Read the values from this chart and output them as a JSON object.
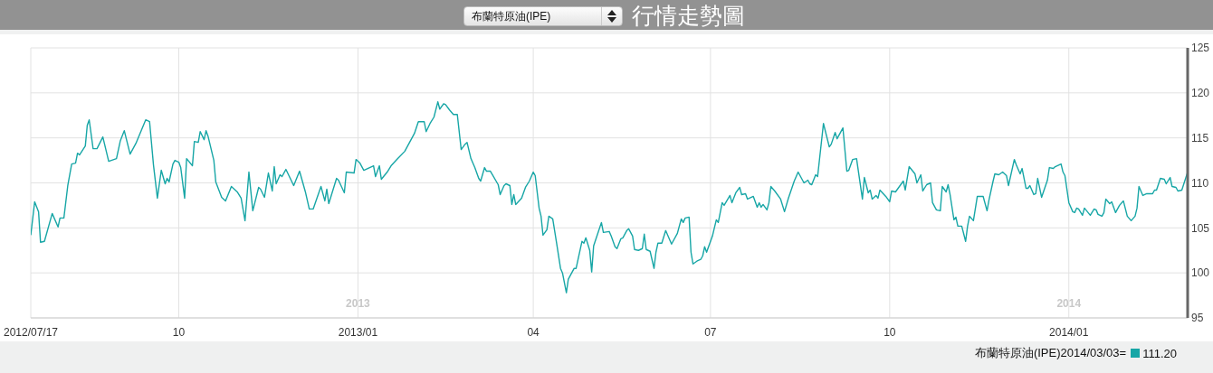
{
  "chart_data": {
    "type": "line",
    "title": "行情走勢圖",
    "subtitle": "布蘭特原油(IPE)",
    "color": "#17a6a6",
    "marker": "none",
    "grid": true,
    "xlim": [
      "2012-07-17",
      "2014-03-03"
    ],
    "xticks": [
      {
        "value": "2012-07-17",
        "label": "2012/07/17"
      },
      {
        "value": "2012-10-01",
        "label": "10"
      },
      {
        "value": "2013-01-01",
        "label": "2013/01"
      },
      {
        "value": "2013-04-01",
        "label": "04"
      },
      {
        "value": "2013-07-01",
        "label": "07"
      },
      {
        "value": "2013-10-01",
        "label": "10"
      },
      {
        "value": "2014-01-01",
        "label": "2014/01"
      }
    ],
    "ylim": [
      95,
      125
    ],
    "yticks": [
      95,
      100,
      105,
      110,
      115,
      120,
      125
    ],
    "x2lim": [
      "2012-07-17",
      "2014-03-03"
    ],
    "x2ticks": [
      {
        "value": "2013-01-01",
        "label": "2013"
      },
      {
        "value": "2014-01-01",
        "label": "2014"
      }
    ],
    "annotations": [
      "布蘭特原油(IPE)2014/03/03=",
      "111.20"
    ],
    "x": [
      "2012-07-17",
      "2012-07-19",
      "2012-07-21",
      "2012-07-22",
      "2012-07-24",
      "2012-07-28",
      "2012-07-31",
      "2012-08-01",
      "2012-08-03",
      "2012-08-05",
      "2012-08-07",
      "2012-08-09",
      "2012-08-10",
      "2012-08-11",
      "2012-08-14",
      "2012-08-15",
      "2012-08-16",
      "2012-08-18",
      "2012-08-20",
      "2012-08-23",
      "2012-08-26",
      "2012-08-30",
      "2012-09-01",
      "2012-09-03",
      "2012-09-06",
      "2012-09-09",
      "2012-09-14",
      "2012-09-16",
      "2012-09-18",
      "2012-09-20",
      "2012-09-22",
      "2012-09-24",
      "2012-09-25",
      "2012-09-26",
      "2012-09-28",
      "2012-09-29",
      "2012-10-01",
      "2012-10-02",
      "2012-10-04",
      "2012-10-05",
      "2012-10-08",
      "2012-10-09",
      "2012-10-11",
      "2012-10-12",
      "2012-10-14",
      "2012-10-15",
      "2012-10-16",
      "2012-10-19",
      "2012-10-20",
      "2012-10-23",
      "2012-10-25",
      "2012-10-28",
      "2012-10-31",
      "2012-11-02",
      "2012-11-04",
      "2012-11-06",
      "2012-11-08",
      "2012-11-11",
      "2012-11-12",
      "2012-11-14",
      "2012-11-16",
      "2012-11-18",
      "2012-11-19",
      "2012-11-20",
      "2012-11-22",
      "2012-11-23",
      "2012-11-25",
      "2012-11-29",
      "2012-12-02",
      "2012-12-05",
      "2012-12-07",
      "2012-12-09",
      "2012-12-13",
      "2012-12-15",
      "2012-12-16",
      "2012-12-17",
      "2012-12-21",
      "2012-12-22",
      "2012-12-25",
      "2012-12-26",
      "2012-12-30",
      "2012-12-31",
      "2013-01-02",
      "2013-01-04",
      "2013-01-09",
      "2013-01-10",
      "2013-01-12",
      "2013-01-13",
      "2013-01-16",
      "2013-01-18",
      "2013-01-21",
      "2013-01-25",
      "2013-01-30",
      "2013-02-01",
      "2013-02-04",
      "2013-02-05",
      "2013-02-07",
      "2013-02-09",
      "2013-02-11",
      "2013-02-12",
      "2013-02-14",
      "2013-02-15",
      "2013-02-17",
      "2013-02-19",
      "2013-02-21",
      "2013-02-23",
      "2013-02-25",
      "2013-02-26",
      "2013-02-28",
      "2013-03-02",
      "2013-03-04",
      "2013-03-05",
      "2013-03-07",
      "2013-03-08",
      "2013-03-10",
      "2013-03-14",
      "2013-03-15",
      "2013-03-17",
      "2013-03-18",
      "2013-03-20",
      "2013-03-21",
      "2013-03-22",
      "2013-03-23",
      "2013-03-26",
      "2013-03-28",
      "2013-03-30",
      "2013-04-01",
      "2013-04-02",
      "2013-04-04",
      "2013-04-05",
      "2013-04-06",
      "2013-04-08",
      "2013-04-09",
      "2013-04-11",
      "2013-04-13",
      "2013-04-15",
      "2013-04-16",
      "2013-04-18",
      "2013-04-19",
      "2013-04-22",
      "2013-04-23",
      "2013-04-26",
      "2013-04-27",
      "2013-04-28",
      "2013-04-30",
      "2013-05-01",
      "2013-05-02",
      "2013-05-06",
      "2013-05-07",
      "2013-05-10",
      "2013-05-11",
      "2013-05-13",
      "2013-05-14",
      "2013-05-16",
      "2013-05-17",
      "2013-05-19",
      "2013-05-20",
      "2013-05-22",
      "2013-05-23",
      "2013-05-25",
      "2013-05-27",
      "2013-05-28",
      "2013-05-29",
      "2013-05-31",
      "2013-06-02",
      "2013-06-03",
      "2013-06-04",
      "2013-06-06",
      "2013-06-08",
      "2013-06-11",
      "2013-06-14",
      "2013-06-16",
      "2013-06-17",
      "2013-06-18",
      "2013-06-20",
      "2013-06-21",
      "2013-06-22",
      "2013-06-24",
      "2013-06-26",
      "2013-06-27",
      "2013-06-28",
      "2013-06-29",
      "2013-07-02",
      "2013-07-04",
      "2013-07-05",
      "2013-07-07",
      "2013-07-08",
      "2013-07-11",
      "2013-07-12",
      "2013-07-14",
      "2013-07-16",
      "2013-07-17",
      "2013-07-19",
      "2013-07-20",
      "2013-07-23",
      "2013-07-25",
      "2013-07-26",
      "2013-07-27",
      "2013-07-28",
      "2013-07-30",
      "2013-07-31",
      "2013-08-01",
      "2013-08-03",
      "2013-08-06",
      "2013-08-08",
      "2013-08-10",
      "2013-08-13",
      "2013-08-15",
      "2013-08-17",
      "2013-08-18",
      "2013-08-20",
      "2013-08-21",
      "2013-08-22",
      "2013-08-24",
      "2013-08-25",
      "2013-08-28",
      "2013-08-31",
      "2013-09-01",
      "2013-09-03",
      "2013-09-04",
      "2013-09-07",
      "2013-09-09",
      "2013-09-10",
      "2013-09-12",
      "2013-09-14",
      "2013-09-17",
      "2013-09-18",
      "2013-09-20",
      "2013-09-21",
      "2013-09-22",
      "2013-09-24",
      "2013-09-25",
      "2013-09-26",
      "2013-09-29",
      "2013-10-01",
      "2013-10-02",
      "2013-10-04",
      "2013-10-06",
      "2013-10-08",
      "2013-10-09",
      "2013-10-11",
      "2013-10-14",
      "2013-10-15",
      "2013-10-17",
      "2013-10-18",
      "2013-10-20",
      "2013-10-22",
      "2013-10-23",
      "2013-10-25",
      "2013-10-27",
      "2013-10-28",
      "2013-10-30",
      "2013-10-31",
      "2013-11-01",
      "2013-11-03",
      "2013-11-04",
      "2013-11-05",
      "2013-11-07",
      "2013-11-09",
      "2013-11-10",
      "2013-11-11",
      "2013-11-13",
      "2013-11-15",
      "2013-11-18",
      "2013-11-20",
      "2013-11-21",
      "2013-11-23",
      "2013-11-24",
      "2013-11-26",
      "2013-11-28",
      "2013-11-30",
      "2013-12-01",
      "2013-12-04",
      "2013-12-05",
      "2013-12-07",
      "2013-12-08",
      "2013-12-10",
      "2013-12-11",
      "2013-12-12",
      "2013-12-14",
      "2013-12-15",
      "2013-12-16",
      "2013-12-18",
      "2013-12-21",
      "2013-12-22",
      "2013-12-24",
      "2013-12-25",
      "2013-12-28",
      "2013-12-29",
      "2013-12-30",
      "2014-01-01",
      "2014-01-03",
      "2014-01-04",
      "2014-01-05",
      "2014-01-06",
      "2014-01-08",
      "2014-01-09",
      "2014-01-12",
      "2014-01-14",
      "2014-01-15",
      "2014-01-16",
      "2014-01-18",
      "2014-01-19",
      "2014-01-20",
      "2014-01-22",
      "2014-01-23",
      "2014-01-25",
      "2014-01-27",
      "2014-01-29",
      "2014-01-31",
      "2014-02-02",
      "2014-02-04",
      "2014-02-05",
      "2014-02-06",
      "2014-02-08",
      "2014-02-10",
      "2014-02-13",
      "2014-02-14",
      "2014-02-15",
      "2014-02-17",
      "2014-02-19",
      "2014-02-20",
      "2014-02-22",
      "2014-02-23",
      "2014-02-25",
      "2014-02-26",
      "2014-02-28",
      "2014-03-03"
    ],
    "values": [
      104.2,
      107.9,
      106.8,
      103.4,
      103.5,
      106.6,
      105.1,
      106.1,
      106.1,
      109.7,
      112.1,
      112.2,
      113.3,
      113.1,
      114.1,
      116.4,
      117.0,
      113.8,
      113.8,
      115.1,
      112.4,
      112.7,
      114.7,
      115.8,
      113.2,
      114.4,
      117.0,
      116.8,
      112.0,
      108.3,
      111.4,
      109.9,
      110.5,
      110.1,
      112.1,
      112.5,
      112.3,
      111.7,
      108.3,
      112.7,
      111.9,
      114.6,
      114.5,
      115.7,
      114.8,
      115.8,
      115.2,
      112.5,
      110.1,
      108.4,
      108.0,
      109.6,
      109.0,
      108.3,
      105.8,
      111.2,
      106.9,
      109.5,
      109.3,
      108.4,
      111.1,
      109.1,
      111.8,
      109.9,
      110.9,
      110.7,
      111.5,
      109.7,
      111.3,
      109.0,
      107.1,
      107.1,
      109.6,
      108.0,
      109.3,
      107.7,
      110.5,
      110.3,
      108.9,
      111.2,
      111.1,
      112.6,
      112.2,
      111.4,
      111.9,
      110.7,
      111.9,
      110.4,
      111.2,
      111.9,
      112.6,
      113.5,
      115.5,
      116.8,
      116.8,
      115.7,
      116.6,
      117.3,
      119.0,
      118.2,
      118.8,
      118.7,
      118.1,
      117.6,
      117.6,
      113.7,
      114.3,
      114.5,
      112.7,
      111.7,
      110.5,
      110.2,
      111.7,
      111.3,
      111.3,
      109.8,
      108.7,
      109.7,
      109.9,
      109.7,
      107.6,
      108.7,
      107.6,
      108.3,
      109.5,
      110.2,
      111.2,
      110.8,
      107.2,
      106.3,
      104.2,
      104.8,
      106.3,
      106.0,
      103.3,
      100.5,
      100.0,
      97.8,
      99.3,
      100.5,
      100.5,
      103.5,
      103.3,
      103.9,
      102.5,
      100.1,
      103.0,
      105.6,
      104.5,
      104.6,
      104.1,
      102.9,
      102.7,
      103.8,
      103.9,
      104.7,
      104.9,
      104.1,
      102.6,
      102.5,
      102.7,
      104.3,
      102.6,
      102.4,
      100.5,
      102.3,
      103.3,
      103.3,
      104.7,
      103.2,
      104.4,
      106.0,
      105.6,
      106.1,
      106.2,
      102.3,
      101.0,
      101.3,
      101.5,
      101.9,
      102.9,
      102.3,
      104.1,
      105.9,
      105.6,
      107.8,
      107.5,
      108.6,
      107.8,
      108.9,
      109.5,
      108.7,
      108.8,
      108.2,
      108.5,
      107.3,
      107.8,
      107.3,
      107.6,
      107.0,
      107.8,
      109.6,
      109.1,
      108.2,
      106.8,
      108.3,
      110.2,
      111.2,
      110.4,
      110.0,
      110.3,
      109.9,
      109.8,
      110.9,
      110.7,
      116.6,
      114.0,
      114.3,
      115.6,
      114.9,
      116.1,
      111.3,
      111.4,
      112.6,
      112.7,
      108.2,
      110.6,
      108.9,
      109.2,
      108.2,
      108.6,
      108.3,
      109.2,
      108.5,
      107.9,
      109.1,
      109.0,
      109.6,
      110.2,
      109.2,
      111.8,
      111.0,
      110.0,
      110.9,
      109.1,
      109.8,
      110.0,
      107.8,
      107.0,
      106.9,
      109.6,
      109.0,
      109.8,
      108.7,
      105.9,
      106.2,
      105.2,
      105.2,
      103.5,
      105.2,
      106.3,
      105.8,
      108.5,
      108.5,
      106.9,
      108.1,
      110.1,
      111.0,
      110.9,
      111.2,
      110.8,
      109.7,
      112.6,
      112.0,
      111.0,
      111.6,
      109.4,
      109.4,
      109.7,
      108.7,
      108.8,
      110.5,
      108.4,
      110.3,
      111.7,
      111.6,
      111.8,
      112.1,
      111.2,
      110.8,
      107.8,
      106.8,
      106.7,
      107.2,
      107.1,
      106.4,
      107.2,
      106.4,
      107.1,
      107.0,
      106.5,
      106.3,
      106.7,
      108.2,
      107.7,
      107.9,
      106.7,
      107.5,
      108.0,
      106.3,
      105.8,
      106.3,
      107.2,
      109.6,
      108.6,
      108.8,
      108.8,
      109.2,
      109.2,
      110.5,
      110.4,
      109.9,
      110.6,
      109.6,
      109.5,
      109.1,
      109.2,
      111.2
    ]
  }
}
